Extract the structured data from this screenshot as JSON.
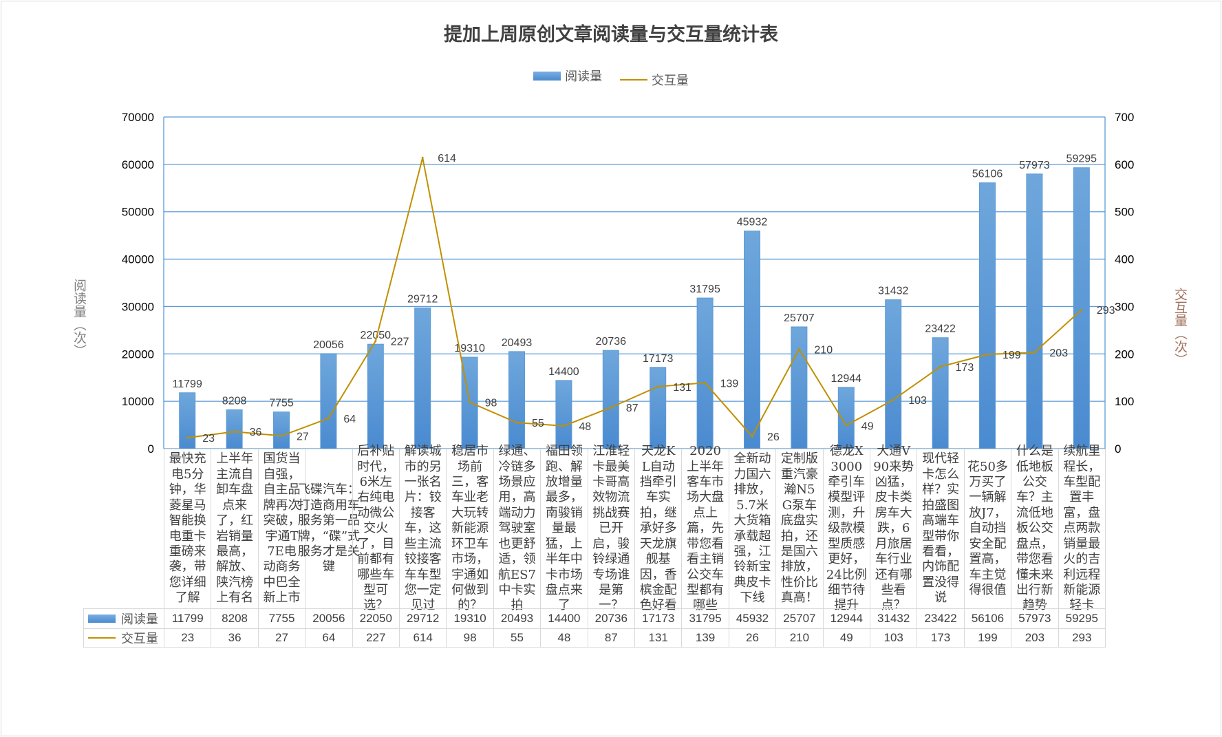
{
  "chart_data": {
    "type": "bar+line",
    "title": "提加上周原创文章阅读量与交互量统计表",
    "categories": [
      "最快充电5分钟，华菱星马智能换电重卡重磅来袭，带您详细了解",
      "上半年主流自卸车盘点来了，红岩销量最高，解放、陕汽榜上有名",
      "国货当自强，自主品牌再次突破，宇通T7E电动商务中巴全新上市",
      "飞碟汽车：打造商用车服务第一品牌，“碟”式服务才是关键",
      "后补贴时代，6米左右纯电动微公交火了，目前都有哪些车型可选？",
      "解读城市的另一张名片：铰接客车，这些主流铰接客车车型您一定见过",
      "稳居市场前三，客车业老大玩转新能源环卫车市场，宇通如何做到的？",
      "绿通、冷链多场景应用，高端动力驾驶室也更舒适，领航ES7中卡实拍",
      "福田领跑、解放增量最多，南骏销量最猛，上半年中卡市场盘点来了",
      "江淮轻卡最美卡哥高效物流挑战赛已开启，骏铃绿通专场谁是第一？",
      "天龙KL自动挡牵引车实拍，继承好多天龙旗舰基因，香槟金配色好看",
      "2020上半年客车市场大盘点上篇，先带您看看主销公交车型都有哪些",
      "全新动力国六排放，5.7米大货箱承载超强，江铃新宝典皮卡下线",
      "定制版重汽豪瀚N5G泵车底盘实拍，还是国六排放，性价比真高！",
      "德龙X3000牵引车模型评测，升级款模型质感更好，24比例细节待提升",
      "大通V90来势凶猛，皮卡类房车大跌，6月旅居车行业还有哪些看点？",
      "现代轻卡怎么样？实拍盛图高端车型带你看看，内饰配置没得说",
      "花50多万买了一辆解放J7，自动挡安全配置高，车主觉得很值",
      "什么是低地板公交车？主流低地板公交盘点，带您看懂未来出行新趋势",
      "续航里程长，车型配置丰富，盘点两款销量最火的吉利远程新能源轻卡"
    ],
    "series": [
      {
        "name": "阅读量",
        "type": "bar",
        "axis": "left",
        "color": "#5B9BD5",
        "values": [
          11799,
          8208,
          7755,
          20056,
          22050,
          29712,
          19310,
          20493,
          14400,
          20736,
          17173,
          31795,
          45932,
          25707,
          12944,
          31432,
          23422,
          56106,
          57973,
          59295
        ]
      },
      {
        "name": "交互量",
        "type": "line",
        "axis": "right",
        "color": "#C09000",
        "values": [
          23,
          36,
          27,
          64,
          227,
          614,
          98,
          55,
          48,
          87,
          131,
          139,
          26,
          210,
          49,
          103,
          173,
          199,
          203,
          293
        ]
      }
    ],
    "ylabel_left": "阅读量（次）",
    "ylabel_right": "交互量（次）",
    "ylim_left": [
      0,
      70000
    ],
    "ylim_right": [
      0,
      700
    ],
    "yticks_left": [
      "0",
      "10000",
      "20000",
      "30000",
      "40000",
      "50000",
      "60000",
      "70000"
    ],
    "yticks_right": [
      "0",
      "100",
      "200",
      "300",
      "400",
      "500",
      "600",
      "700"
    ],
    "grid": true,
    "legend": "top",
    "data_table": true
  }
}
